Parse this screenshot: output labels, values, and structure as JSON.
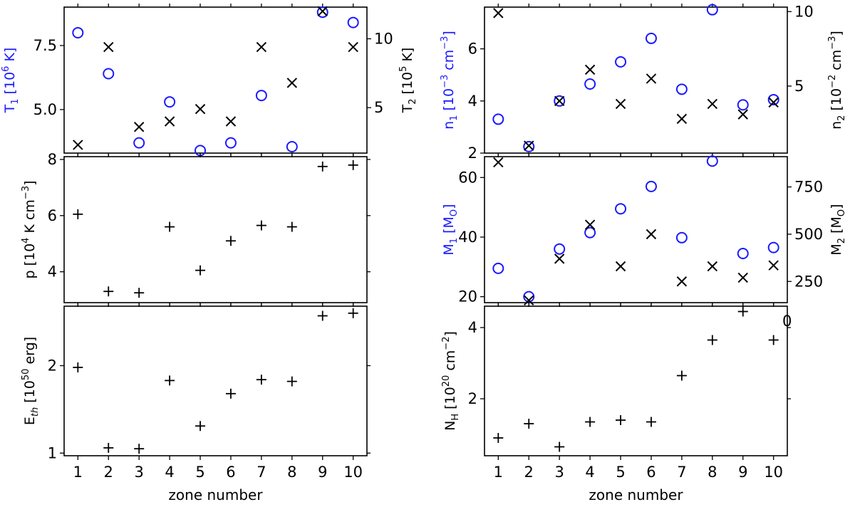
{
  "chart_data": [
    {
      "id": "T",
      "type": "scatter",
      "x": [
        1,
        2,
        3,
        4,
        5,
        6,
        7,
        8,
        9,
        10
      ],
      "left_axis": {
        "label": "T$_1$ [10$^6$ K]",
        "color": "#1a1aff",
        "ylim": [
          3.3,
          9.0
        ],
        "ticks": [
          5.0,
          7.5
        ],
        "tick_labels": [
          "5.0",
          "7.5"
        ]
      },
      "right_axis": {
        "label": "T$_2$ [10$^5$ K]",
        "color": "#000000",
        "ylim": [
          1.7,
          12.3
        ],
        "ticks": [
          5,
          10
        ],
        "tick_labels": [
          "5",
          "10"
        ]
      },
      "series": [
        {
          "marker": "circle",
          "axis": "left",
          "values": [
            8.0,
            6.4,
            3.7,
            5.3,
            3.4,
            3.7,
            5.55,
            3.55,
            8.8,
            8.4
          ]
        },
        {
          "marker": "x",
          "axis": "right",
          "values": [
            2.3,
            9.4,
            3.6,
            4.0,
            4.9,
            4.0,
            9.4,
            6.8,
            12.0,
            9.4
          ]
        }
      ]
    },
    {
      "id": "n",
      "type": "scatter",
      "x": [
        1,
        2,
        3,
        4,
        5,
        6,
        7,
        8,
        9,
        10
      ],
      "left_axis": {
        "label": "n$_1$ [10$^{-3}$ cm$^{-3}$]",
        "color": "#1a1aff",
        "ylim": [
          2.0,
          7.6
        ],
        "ticks": [
          2,
          4,
          6
        ],
        "tick_labels": [
          "2",
          "4",
          "6"
        ]
      },
      "right_axis": {
        "label": "n$_2$ [10$^{-2}$ cm$^{-3}$]",
        "color": "#000000",
        "ylim": [
          0.5,
          10.3
        ],
        "ticks": [
          5,
          10
        ],
        "tick_labels": [
          "5",
          "10"
        ]
      },
      "series": [
        {
          "marker": "circle",
          "axis": "left",
          "values": [
            3.3,
            2.25,
            4.0,
            4.65,
            5.5,
            6.4,
            4.45,
            7.5,
            3.85,
            4.05
          ]
        },
        {
          "marker": "x",
          "axis": "right",
          "values": [
            9.9,
            1.0,
            4.0,
            6.1,
            3.8,
            5.5,
            2.8,
            3.8,
            3.1,
            3.9
          ]
        }
      ]
    },
    {
      "id": "p",
      "type": "scatter",
      "x": [
        1,
        2,
        3,
        4,
        5,
        6,
        7,
        8,
        9,
        10
      ],
      "left_axis": {
        "label": "p [10$^4$ K cm$^{-3}$]",
        "color": "#000000",
        "ylim": [
          2.9,
          8.1
        ],
        "ticks": [
          4,
          6,
          8
        ],
        "tick_labels": [
          "4",
          "6",
          "8"
        ]
      },
      "series": [
        {
          "marker": "plus",
          "axis": "left",
          "values": [
            6.05,
            3.3,
            3.25,
            5.6,
            4.05,
            5.1,
            5.65,
            5.6,
            7.75,
            7.8
          ]
        }
      ]
    },
    {
      "id": "M",
      "type": "scatter",
      "x": [
        1,
        2,
        3,
        4,
        5,
        6,
        7,
        8,
        9,
        10
      ],
      "left_axis": {
        "label": "M$_1$ [M$_O$]",
        "color": "#1a1aff",
        "ylim": [
          18,
          67
        ],
        "ticks": [
          20,
          40,
          60
        ],
        "tick_labels": [
          "20",
          "40",
          "60"
        ]
      },
      "right_axis": {
        "label": "M$_2$ [M$_O$]",
        "color": "#000000",
        "ylim": [
          138,
          910
        ],
        "ticks": [
          250,
          500,
          750
        ],
        "tick_labels": [
          "250",
          "500",
          "750"
        ]
      },
      "series": [
        {
          "marker": "circle",
          "axis": "left",
          "values": [
            29.5,
            20.0,
            36.0,
            41.5,
            49.5,
            57.0,
            39.8,
            65.5,
            34.5,
            36.5
          ]
        },
        {
          "marker": "x",
          "axis": "right",
          "values": [
            880,
            150,
            370,
            550,
            330,
            500,
            250,
            330,
            270,
            335
          ]
        }
      ]
    },
    {
      "id": "Eth",
      "type": "scatter",
      "x": [
        1,
        2,
        3,
        4,
        5,
        6,
        7,
        8,
        9,
        10
      ],
      "xlabel": "zone number",
      "left_axis": {
        "label": "E$_{th}$ [10$^{50}$ erg]",
        "color": "#000000",
        "ylim": [
          0.97,
          2.68
        ],
        "ticks": [
          1,
          2
        ],
        "tick_labels": [
          "1",
          "2"
        ]
      },
      "series": [
        {
          "marker": "plus",
          "axis": "left",
          "values": [
            1.98,
            1.06,
            1.05,
            1.83,
            1.31,
            1.68,
            1.84,
            1.82,
            2.57,
            2.6
          ]
        }
      ]
    },
    {
      "id": "NH",
      "type": "scatter",
      "x": [
        1,
        2,
        3,
        4,
        5,
        6,
        7,
        8,
        9,
        10
      ],
      "xlabel": "zone number",
      "left_axis": {
        "label": "N$_H$ [10$^{20}$ cm$^{-2}$]",
        "color": "#000000",
        "ylim": [
          0.4,
          4.6
        ],
        "ticks": [
          2,
          4
        ],
        "tick_labels": [
          "2",
          "4"
        ]
      },
      "series": [
        {
          "marker": "plus",
          "axis": "left",
          "values": [
            0.9,
            1.3,
            0.65,
            1.35,
            1.4,
            1.35,
            2.65,
            3.65,
            4.45,
            3.65
          ]
        }
      ]
    }
  ],
  "x_tick_labels": [
    "1",
    "2",
    "3",
    "4",
    "5",
    "6",
    "7",
    "8",
    "9",
    "10"
  ],
  "stray_text": "0"
}
